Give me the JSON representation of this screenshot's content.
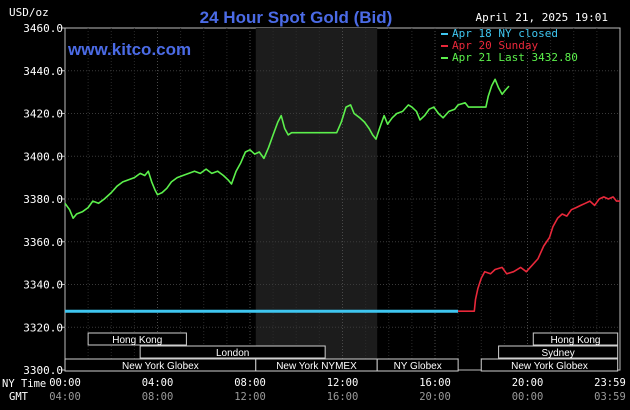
{
  "chart_data": {
    "type": "line",
    "title": "24 Hour Spot Gold (Bid)",
    "site": "www.kitco.com",
    "timestamp": "April 21, 2025 19:01",
    "ylabel": "USD/oz",
    "ylim": [
      3300,
      3460
    ],
    "yticks": [
      "3300.0",
      "3320.0",
      "3340.0",
      "3360.0",
      "3380.0",
      "3400.0",
      "3420.0",
      "3440.0",
      "3460.0"
    ],
    "xlim": [
      0,
      24
    ],
    "xticks_ny": [
      "00:00",
      "04:00",
      "08:00",
      "12:00",
      "16:00",
      "20:00",
      "23:59"
    ],
    "xticks_gmt": [
      "04:00",
      "08:00",
      "12:00",
      "16:00",
      "20:00",
      "00:00",
      "03:59"
    ],
    "ny_time_label": "NY Time",
    "gmt_label": "GMT",
    "grid": true,
    "shaded_hours": [
      8.25,
      13.5
    ],
    "legend": [
      {
        "label": "Apr 18 NY closed",
        "color": "#3fc6f0"
      },
      {
        "label": "Apr 20 Sunday",
        "color": "#e8283a"
      },
      {
        "label": "Apr 21 Last 3432.80",
        "color": "#5cf04c"
      }
    ],
    "sessions": [
      {
        "name": "Hong Kong",
        "start": 1.0,
        "end": 5.25,
        "row": 1
      },
      {
        "name": "Hong Kong",
        "start": 20.25,
        "end": 23.9,
        "row": 1
      },
      {
        "name": "London",
        "start": 3.25,
        "end": 11.25,
        "row": 2
      },
      {
        "name": "Sydney",
        "start": 18.75,
        "end": 23.9,
        "row": 2
      },
      {
        "name": "New York Globex",
        "start": 0.0,
        "end": 8.25,
        "row": 3
      },
      {
        "name": "New York NYMEX",
        "start": 8.25,
        "end": 13.5,
        "row": 3
      },
      {
        "name": "NY Globex",
        "start": 13.5,
        "end": 17.0,
        "row": 3
      },
      {
        "name": "New York Globex",
        "start": 18.0,
        "end": 23.9,
        "row": 3
      }
    ],
    "series": [
      {
        "name": "Apr 18 NY closed",
        "color": "#3fc6f0",
        "points": [
          [
            0,
            3327.5
          ],
          [
            17.0,
            3327.5
          ]
        ]
      },
      {
        "name": "Apr 20 Sunday",
        "color": "#e8283a",
        "points": [
          [
            17.0,
            3327.5
          ],
          [
            17.7,
            3327.5
          ],
          [
            17.75,
            3333
          ],
          [
            17.85,
            3338
          ],
          [
            18.0,
            3343
          ],
          [
            18.15,
            3346
          ],
          [
            18.4,
            3345
          ],
          [
            18.6,
            3347
          ],
          [
            18.9,
            3348
          ],
          [
            19.1,
            3345
          ],
          [
            19.4,
            3346
          ],
          [
            19.7,
            3348
          ],
          [
            19.95,
            3346
          ],
          [
            20.2,
            3349
          ],
          [
            20.45,
            3352
          ],
          [
            20.7,
            3358
          ],
          [
            20.95,
            3362
          ],
          [
            21.1,
            3367
          ],
          [
            21.3,
            3371
          ],
          [
            21.5,
            3373
          ],
          [
            21.7,
            3372
          ],
          [
            21.9,
            3375
          ],
          [
            22.1,
            3376
          ],
          [
            22.3,
            3377
          ],
          [
            22.5,
            3378
          ],
          [
            22.7,
            3379
          ],
          [
            22.9,
            3377
          ],
          [
            23.1,
            3380
          ],
          [
            23.3,
            3381
          ],
          [
            23.5,
            3380
          ],
          [
            23.7,
            3381
          ],
          [
            23.85,
            3379
          ],
          [
            24.0,
            3379
          ]
        ]
      },
      {
        "name": "Apr 21 Last 3432.80",
        "color": "#5cf04c",
        "points": [
          [
            0,
            3378
          ],
          [
            0.2,
            3375
          ],
          [
            0.35,
            3371
          ],
          [
            0.5,
            3373
          ],
          [
            0.75,
            3374
          ],
          [
            1.0,
            3376
          ],
          [
            1.2,
            3379
          ],
          [
            1.45,
            3378
          ],
          [
            1.7,
            3380
          ],
          [
            2.0,
            3383
          ],
          [
            2.25,
            3386
          ],
          [
            2.5,
            3388
          ],
          [
            2.75,
            3389
          ],
          [
            3.0,
            3390
          ],
          [
            3.25,
            3392
          ],
          [
            3.45,
            3391
          ],
          [
            3.6,
            3393
          ],
          [
            3.75,
            3388
          ],
          [
            3.9,
            3384
          ],
          [
            4.0,
            3382
          ],
          [
            4.2,
            3383
          ],
          [
            4.4,
            3385
          ],
          [
            4.6,
            3388
          ],
          [
            4.85,
            3390
          ],
          [
            5.1,
            3391
          ],
          [
            5.35,
            3392
          ],
          [
            5.6,
            3393
          ],
          [
            5.85,
            3392
          ],
          [
            6.1,
            3394
          ],
          [
            6.35,
            3392
          ],
          [
            6.6,
            3393
          ],
          [
            6.85,
            3391
          ],
          [
            7.05,
            3389
          ],
          [
            7.2,
            3387
          ],
          [
            7.4,
            3393
          ],
          [
            7.6,
            3397
          ],
          [
            7.8,
            3402
          ],
          [
            8.0,
            3403
          ],
          [
            8.2,
            3401
          ],
          [
            8.4,
            3402
          ],
          [
            8.6,
            3399
          ],
          [
            8.8,
            3404
          ],
          [
            9.0,
            3410
          ],
          [
            9.2,
            3416
          ],
          [
            9.35,
            3419
          ],
          [
            9.5,
            3413
          ],
          [
            9.65,
            3410
          ],
          [
            9.8,
            3411
          ],
          [
            10.0,
            3411
          ],
          [
            11.5,
            3411
          ],
          [
            11.75,
            3411
          ],
          [
            11.95,
            3416
          ],
          [
            12.15,
            3423
          ],
          [
            12.35,
            3424
          ],
          [
            12.5,
            3420
          ],
          [
            12.75,
            3418
          ],
          [
            12.95,
            3416
          ],
          [
            13.15,
            3413
          ],
          [
            13.3,
            3410
          ],
          [
            13.45,
            3408
          ],
          [
            13.6,
            3413
          ],
          [
            13.8,
            3419
          ],
          [
            13.95,
            3415
          ],
          [
            14.15,
            3418
          ],
          [
            14.35,
            3420
          ],
          [
            14.6,
            3421
          ],
          [
            14.85,
            3424
          ],
          [
            15.0,
            3423
          ],
          [
            15.2,
            3421
          ],
          [
            15.35,
            3417
          ],
          [
            15.55,
            3419
          ],
          [
            15.75,
            3422
          ],
          [
            15.95,
            3423
          ],
          [
            16.15,
            3420
          ],
          [
            16.35,
            3418
          ],
          [
            16.6,
            3421
          ],
          [
            16.85,
            3422
          ],
          [
            17.0,
            3424
          ],
          [
            17.3,
            3425
          ],
          [
            17.45,
            3423
          ],
          [
            17.6,
            3423
          ],
          [
            18.0,
            3423
          ],
          [
            18.2,
            3423
          ],
          [
            18.3,
            3428
          ],
          [
            18.45,
            3433
          ],
          [
            18.6,
            3436
          ],
          [
            18.75,
            3432
          ],
          [
            18.9,
            3429
          ],
          [
            19.05,
            3431
          ],
          [
            19.2,
            3432.8
          ]
        ]
      }
    ]
  }
}
